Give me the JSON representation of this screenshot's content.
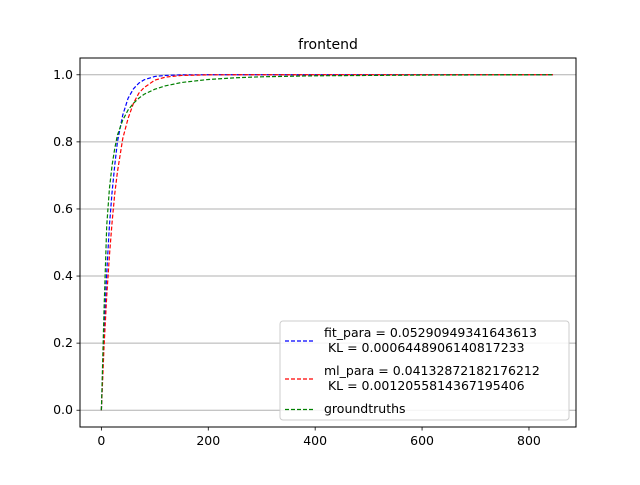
{
  "chart_data": {
    "type": "line",
    "title": "frontend",
    "xlabel": "",
    "ylabel": "",
    "xlim": [
      -40,
      888
    ],
    "ylim": [
      -0.05,
      1.05
    ],
    "x_ticks": [
      0,
      200,
      400,
      600,
      800
    ],
    "x_tick_labels": [
      "0",
      "200",
      "400",
      "600",
      "800"
    ],
    "y_ticks": [
      0.0,
      0.2,
      0.4,
      0.6,
      0.8,
      1.0
    ],
    "y_tick_labels": [
      "0.0",
      "0.2",
      "0.4",
      "0.6",
      "0.8",
      "1.0"
    ],
    "grid": "horizontal",
    "legend_position": "lower-right",
    "x": [
      0,
      5,
      10,
      15,
      20,
      25,
      30,
      40,
      50,
      60,
      70,
      80,
      100,
      120,
      150,
      200,
      250,
      300,
      400,
      500,
      600,
      700,
      800,
      845
    ],
    "series": [
      {
        "name": "fit_para = 0.05290949341643613\n KL = 0.0006448906140817233",
        "color": "#0000ff",
        "values": [
          0.0,
          0.23,
          0.41,
          0.55,
          0.65,
          0.73,
          0.8,
          0.88,
          0.93,
          0.958,
          0.975,
          0.985,
          0.995,
          0.998,
          0.9997,
          1.0,
          1.0,
          1.0,
          1.0,
          1.0,
          1.0,
          1.0,
          1.0,
          1.0
        ]
      },
      {
        "name": "ml_para = 0.04132872182176212\n KL = 0.0012055814367195406",
        "color": "#ff0000",
        "values": [
          0.0,
          0.19,
          0.34,
          0.46,
          0.56,
          0.645,
          0.71,
          0.81,
          0.87,
          0.915,
          0.945,
          0.962,
          0.984,
          0.993,
          0.998,
          0.9998,
          1.0,
          1.0,
          1.0,
          1.0,
          1.0,
          1.0,
          1.0,
          1.0
        ]
      },
      {
        "name": "groundtruths",
        "color": "#008000",
        "values": [
          0.0,
          0.3,
          0.55,
          0.66,
          0.73,
          0.78,
          0.82,
          0.865,
          0.895,
          0.915,
          0.93,
          0.942,
          0.957,
          0.967,
          0.977,
          0.986,
          0.991,
          0.994,
          0.997,
          0.998,
          0.999,
          0.9995,
          0.9998,
          1.0
        ]
      }
    ]
  }
}
